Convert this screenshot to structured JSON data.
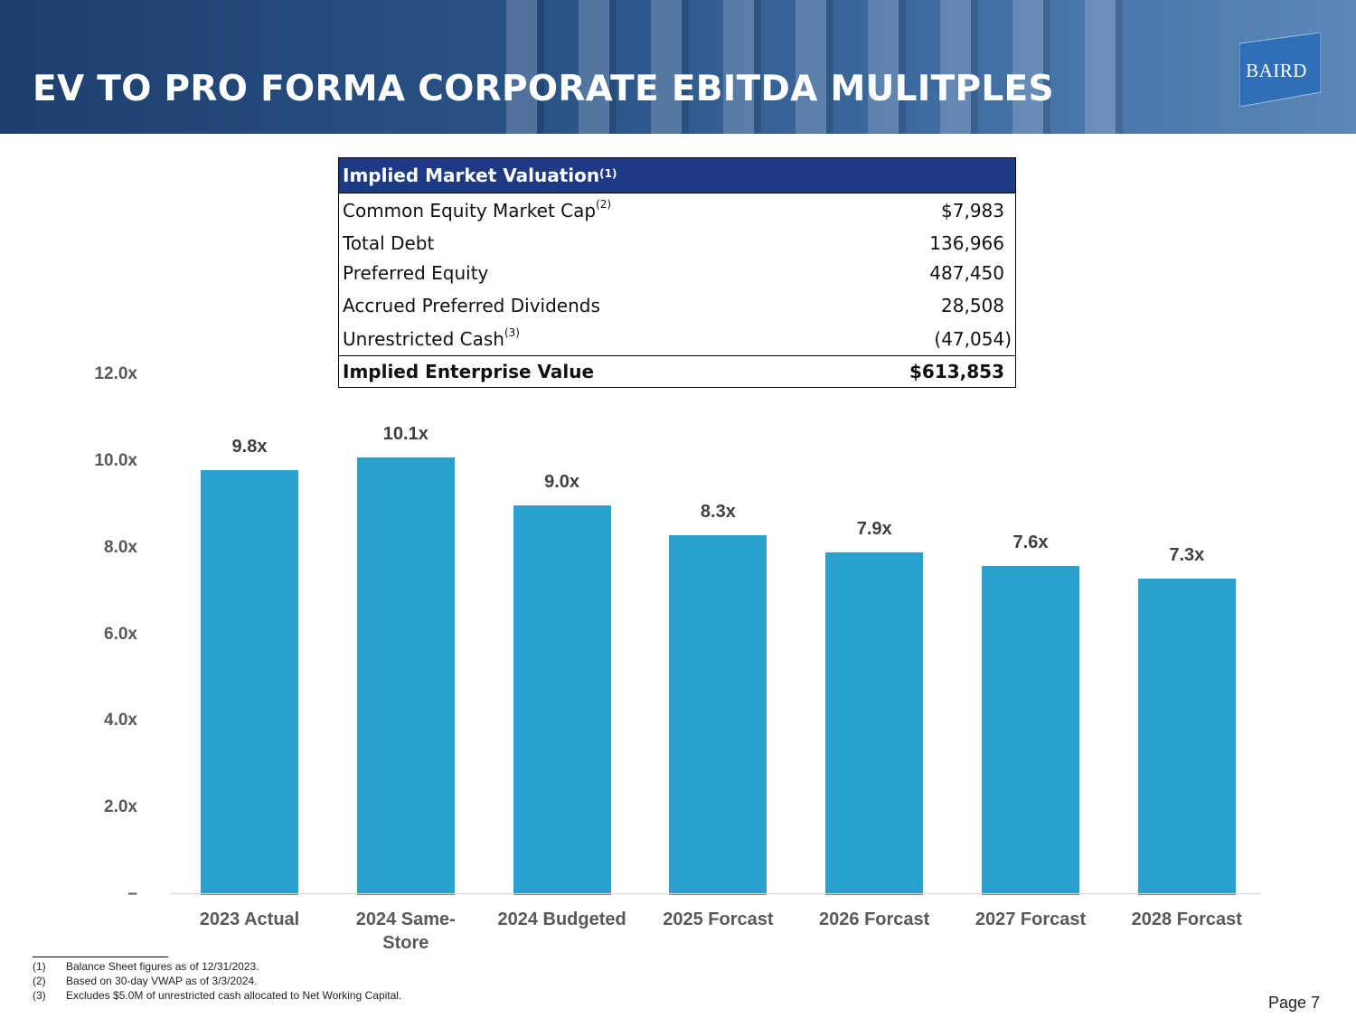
{
  "header": {
    "title": "EV TO PRO FORMA CORPORATE EBITDA MULITPLES",
    "logo_text": "BAIRD",
    "colors": {
      "background": "#2a5386",
      "logo": "#2f6fb8"
    }
  },
  "valuation_table": {
    "title": "Implied Market Valuation",
    "title_note": "(1)",
    "rows": [
      {
        "label": "Common Equity Market Cap",
        "note": "(2)",
        "value": "$7,983"
      },
      {
        "label": "Total Debt",
        "note": "",
        "value": "136,966"
      },
      {
        "label": "Preferred Equity",
        "note": "",
        "value": "487,450"
      },
      {
        "label": "Accrued Preferred Dividends",
        "note": "",
        "value": "28,508"
      },
      {
        "label": "Unrestricted Cash",
        "note": "(3)",
        "value": "(47,054)"
      }
    ],
    "total": {
      "label": "Implied Enterprise Value",
      "value": "$613,853"
    },
    "colors": {
      "header_bg": "#1f3a85"
    }
  },
  "chart_data": {
    "type": "bar",
    "title": "",
    "xlabel": "",
    "ylabel": "",
    "categories": [
      "2023 Actual",
      "2024 Same-Store",
      "2024 Budgeted",
      "2025 Forcast",
      "2026 Forcast",
      "2027 Forcast",
      "2028 Forcast"
    ],
    "category_lines": [
      [
        "2023 Actual"
      ],
      [
        "2024 Same-",
        "Store"
      ],
      [
        "2024 Budgeted"
      ],
      [
        "2025 Forcast"
      ],
      [
        "2026 Forcast"
      ],
      [
        "2027 Forcast"
      ],
      [
        "2028 Forcast"
      ]
    ],
    "values": [
      9.8,
      10.1,
      9.0,
      8.3,
      7.9,
      7.6,
      7.3
    ],
    "data_labels": [
      "9.8x",
      "10.1x",
      "9.0x",
      "8.3x",
      "7.9x",
      "7.6x",
      "7.3x"
    ],
    "ylim": [
      0,
      12
    ],
    "y_ticks": [
      {
        "value": 0,
        "label": "–"
      },
      {
        "value": 2,
        "label": "2.0x"
      },
      {
        "value": 4,
        "label": "4.0x"
      },
      {
        "value": 6,
        "label": "6.0x"
      },
      {
        "value": 8,
        "label": "8.0x"
      },
      {
        "value": 10,
        "label": "10.0x"
      },
      {
        "value": 12,
        "label": "12.0x"
      }
    ],
    "grid": false,
    "bar_color": "#29a0cd"
  },
  "footnotes": [
    {
      "num": "(1)",
      "text": "Balance Sheet figures as of 12/31/2023."
    },
    {
      "num": "(2)",
      "text": "Based on 30-day VWAP as of 3/3/2024."
    },
    {
      "num": "(3)",
      "text": "Excludes $5.0M of unrestricted cash allocated to Net Working Capital."
    }
  ],
  "page": {
    "label": "Page 7"
  }
}
